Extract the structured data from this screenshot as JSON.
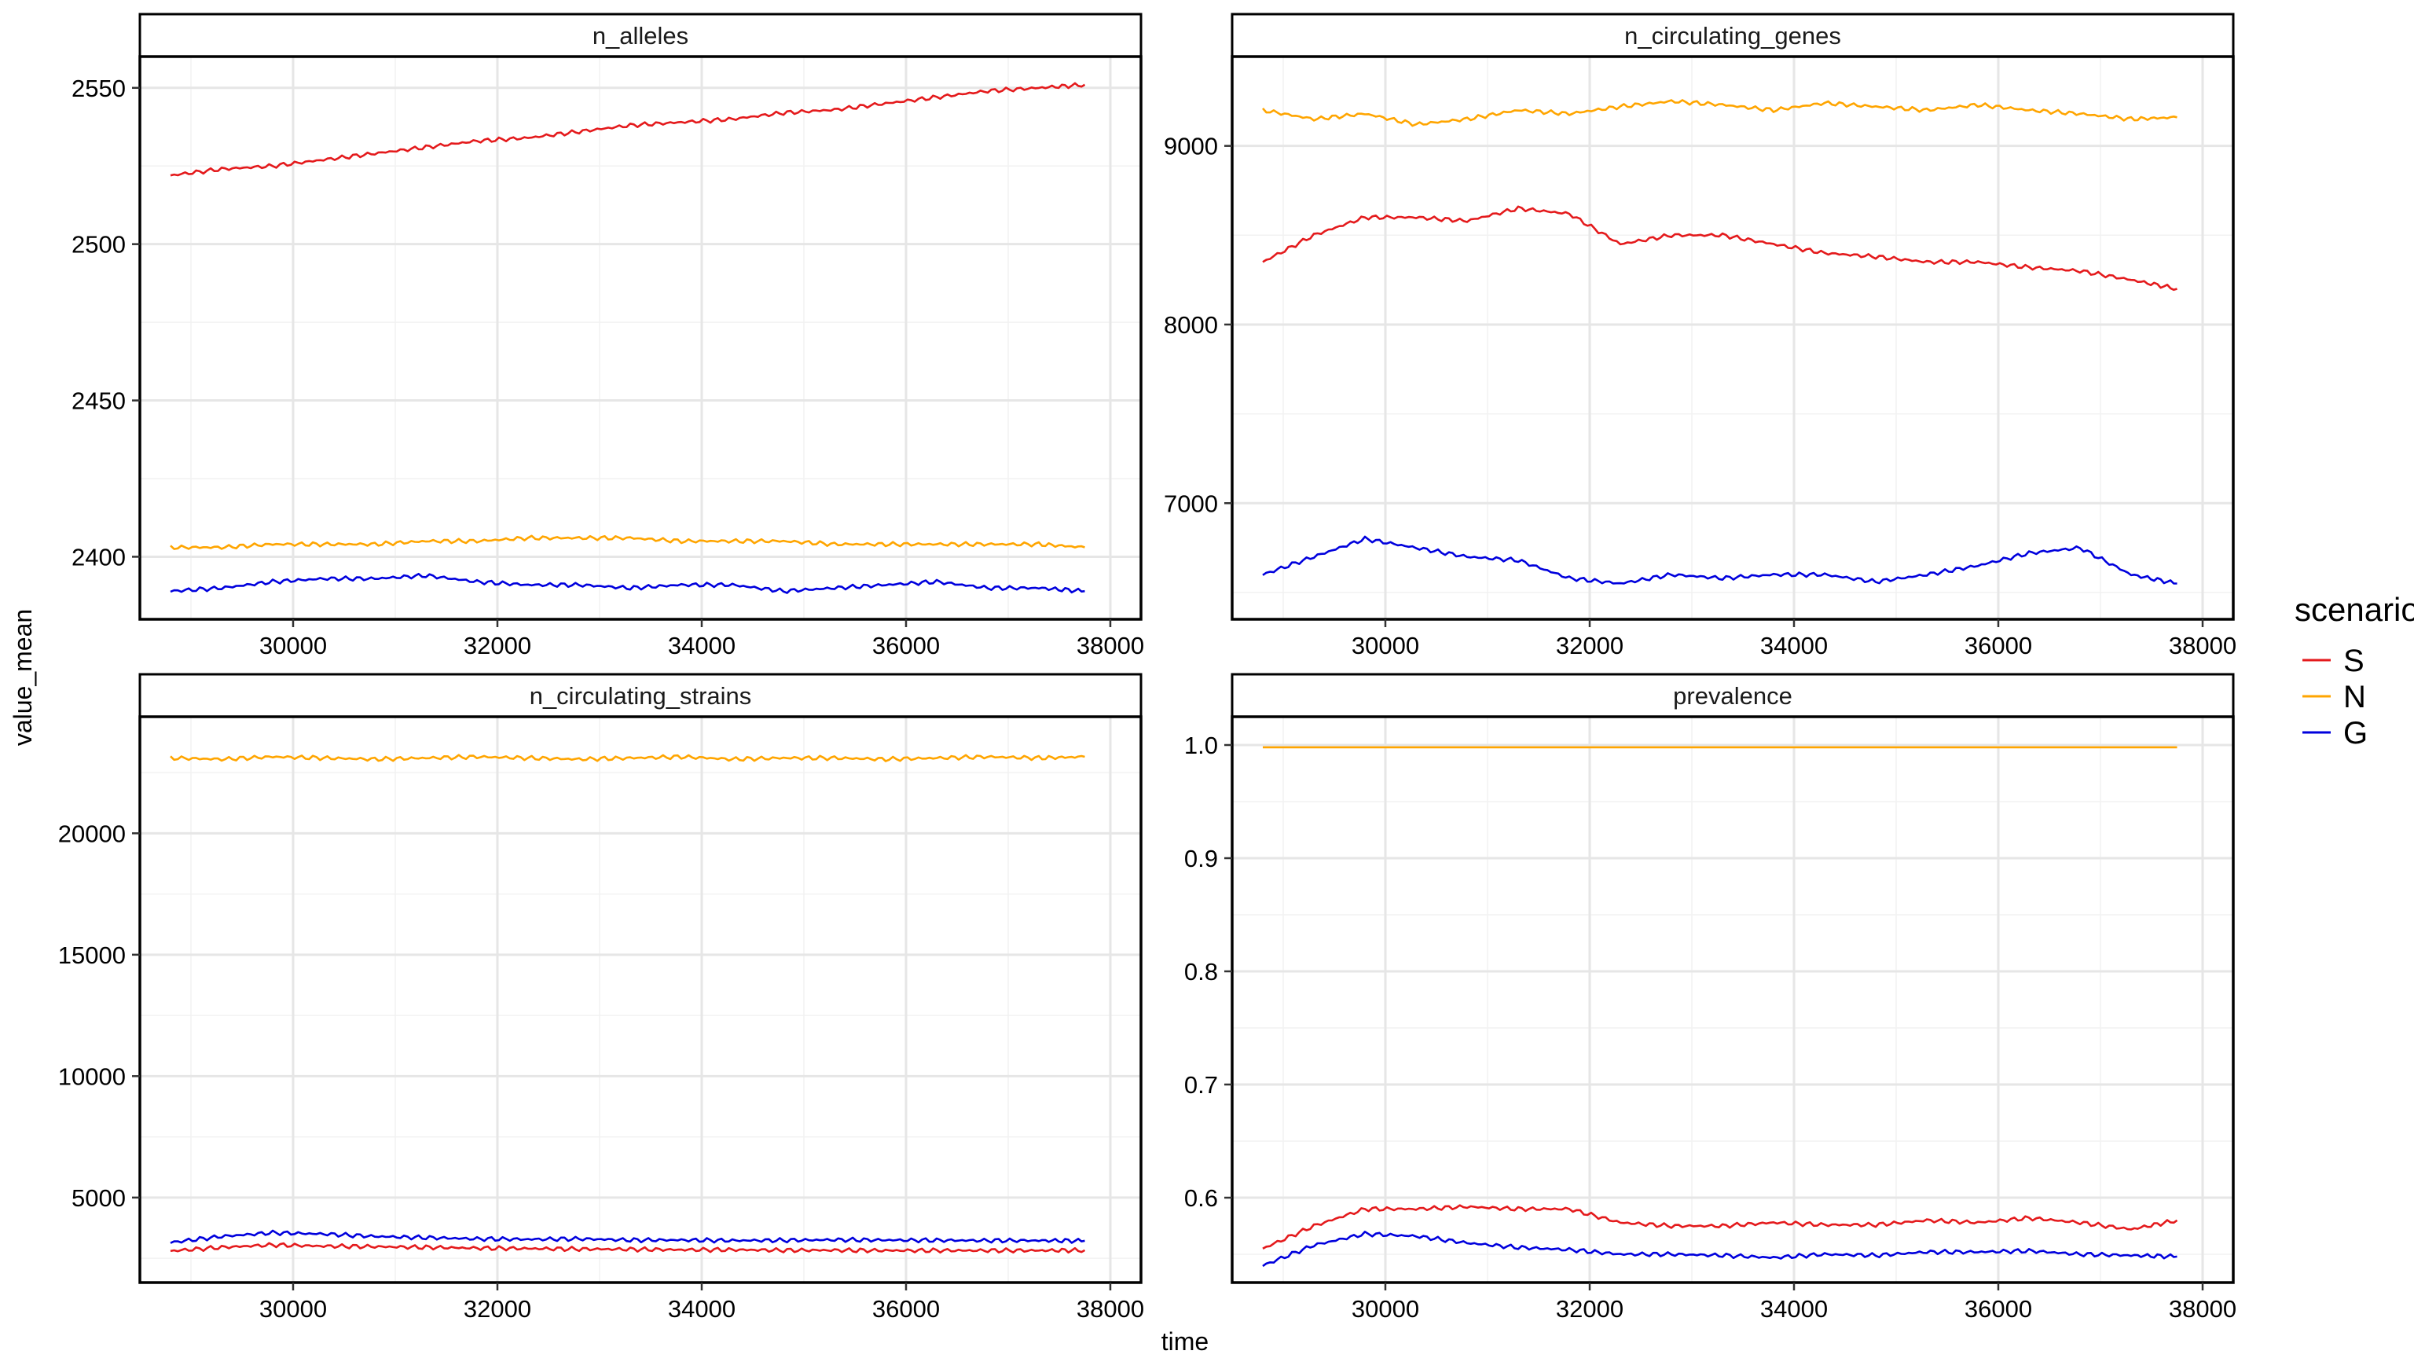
{
  "figure": {
    "x_axis_label": "time",
    "y_axis_label": "value_mean",
    "legend": {
      "title": "scenario",
      "placement": "right",
      "entries": [
        {
          "label": "S",
          "color": "#e41a1c"
        },
        {
          "label": "N",
          "color": "#ffa500"
        },
        {
          "label": "G",
          "color": "#0000dd"
        }
      ]
    }
  },
  "chart_data": [
    {
      "type": "line",
      "title": "n_alleles",
      "xlim": [
        28500,
        38300
      ],
      "ylim": [
        2380,
        2560
      ],
      "x_ticks": [
        30000,
        32000,
        34000,
        36000,
        38000
      ],
      "y_ticks": [
        2400,
        2450,
        2500,
        2550
      ],
      "grid": true,
      "x": [
        28800,
        29300,
        29800,
        30300,
        30800,
        31300,
        31800,
        32300,
        32800,
        33300,
        33800,
        34300,
        34800,
        35300,
        35800,
        36300,
        36800,
        37300,
        37750
      ],
      "series": [
        {
          "name": "S",
          "color": "#e41a1c",
          "values": [
            2522,
            2524,
            2525,
            2527,
            2529,
            2531,
            2533,
            2534,
            2536,
            2538,
            2539,
            2540,
            2542,
            2543,
            2545,
            2547,
            2549,
            2550,
            2551
          ]
        },
        {
          "name": "N",
          "color": "#ffa500",
          "values": [
            2403,
            2403,
            2404,
            2404,
            2404,
            2405,
            2405,
            2406,
            2406,
            2406,
            2405,
            2405,
            2405,
            2404,
            2404,
            2404,
            2404,
            2404,
            2403
          ]
        },
        {
          "name": "G",
          "color": "#0000dd",
          "values": [
            2389,
            2390,
            2392,
            2393,
            2393,
            2394,
            2392,
            2391,
            2391,
            2390,
            2391,
            2391,
            2389,
            2390,
            2391,
            2392,
            2390,
            2390,
            2389
          ]
        }
      ]
    },
    {
      "type": "line",
      "title": "n_circulating_genes",
      "xlim": [
        28500,
        38300
      ],
      "ylim": [
        6350,
        9500
      ],
      "x_ticks": [
        30000,
        32000,
        34000,
        36000,
        38000
      ],
      "y_ticks": [
        7000,
        8000,
        9000
      ],
      "grid": true,
      "x": [
        28800,
        29300,
        29800,
        30300,
        30800,
        31300,
        31800,
        32300,
        32800,
        33300,
        33800,
        34300,
        34800,
        35300,
        35800,
        36300,
        36800,
        37300,
        37750
      ],
      "series": [
        {
          "name": "S",
          "color": "#e41a1c",
          "values": [
            8350,
            8500,
            8600,
            8600,
            8580,
            8650,
            8620,
            8450,
            8500,
            8500,
            8450,
            8400,
            8380,
            8350,
            8350,
            8320,
            8300,
            8250,
            8200
          ]
        },
        {
          "name": "N",
          "color": "#ffa500",
          "values": [
            9200,
            9150,
            9180,
            9120,
            9150,
            9200,
            9180,
            9220,
            9250,
            9230,
            9200,
            9240,
            9220,
            9200,
            9230,
            9200,
            9180,
            9150,
            9160
          ]
        },
        {
          "name": "G",
          "color": "#0000dd",
          "values": [
            6600,
            6700,
            6800,
            6750,
            6700,
            6680,
            6580,
            6550,
            6600,
            6580,
            6600,
            6600,
            6560,
            6600,
            6650,
            6720,
            6750,
            6600,
            6550
          ]
        }
      ]
    },
    {
      "type": "line",
      "title": "n_circulating_strains",
      "xlim": [
        28500,
        38300
      ],
      "ylim": [
        1500,
        24800
      ],
      "x_ticks": [
        30000,
        32000,
        34000,
        36000,
        38000
      ],
      "y_ticks": [
        5000,
        10000,
        15000,
        20000
      ],
      "grid": true,
      "x": [
        28800,
        29300,
        29800,
        30300,
        30800,
        31300,
        31800,
        32300,
        32800,
        33300,
        33800,
        34300,
        34800,
        35300,
        35800,
        36300,
        36800,
        37300,
        37750
      ],
      "series": [
        {
          "name": "S",
          "color": "#e41a1c",
          "values": [
            2800,
            2950,
            3050,
            3000,
            2980,
            2950,
            2920,
            2900,
            2880,
            2870,
            2850,
            2850,
            2830,
            2830,
            2820,
            2820,
            2820,
            2820,
            2830
          ]
        },
        {
          "name": "N",
          "color": "#ffa500",
          "values": [
            23100,
            23050,
            23150,
            23100,
            23050,
            23100,
            23150,
            23100,
            23050,
            23100,
            23150,
            23050,
            23100,
            23100,
            23050,
            23100,
            23150,
            23100,
            23150
          ]
        },
        {
          "name": "G",
          "color": "#0000dd",
          "values": [
            3150,
            3400,
            3550,
            3500,
            3400,
            3350,
            3300,
            3280,
            3300,
            3250,
            3250,
            3230,
            3240,
            3260,
            3250,
            3240,
            3230,
            3230,
            3220
          ]
        }
      ]
    },
    {
      "type": "line",
      "title": "prevalence",
      "xlim": [
        28500,
        38300
      ],
      "ylim": [
        0.525,
        1.025
      ],
      "x_ticks": [
        30000,
        32000,
        34000,
        36000,
        38000
      ],
      "y_ticks": [
        0.6,
        0.7,
        0.8,
        0.9,
        1.0
      ],
      "y_tick_labels": [
        "0.6",
        "0.7",
        "0.8",
        "0.9",
        "1.0"
      ],
      "grid": true,
      "x": [
        28800,
        29300,
        29800,
        30300,
        30800,
        31300,
        31800,
        32300,
        32800,
        33300,
        33800,
        34300,
        34800,
        35300,
        35800,
        36300,
        36800,
        37300,
        37750
      ],
      "series": [
        {
          "name": "S",
          "color": "#e41a1c",
          "values": [
            0.555,
            0.575,
            0.59,
            0.59,
            0.592,
            0.59,
            0.59,
            0.578,
            0.575,
            0.575,
            0.578,
            0.576,
            0.576,
            0.58,
            0.578,
            0.582,
            0.578,
            0.572,
            0.58
          ]
        },
        {
          "name": "N",
          "color": "#ffa500",
          "values": [
            0.998,
            0.998,
            0.998,
            0.998,
            0.998,
            0.998,
            0.998,
            0.998,
            0.998,
            0.998,
            0.998,
            0.998,
            0.998,
            0.998,
            0.998,
            0.998,
            0.998,
            0.998,
            0.998
          ]
        },
        {
          "name": "G",
          "color": "#0000dd",
          "values": [
            0.54,
            0.558,
            0.568,
            0.566,
            0.56,
            0.556,
            0.554,
            0.55,
            0.55,
            0.549,
            0.547,
            0.55,
            0.549,
            0.552,
            0.552,
            0.553,
            0.55,
            0.549,
            0.548
          ]
        }
      ]
    }
  ]
}
